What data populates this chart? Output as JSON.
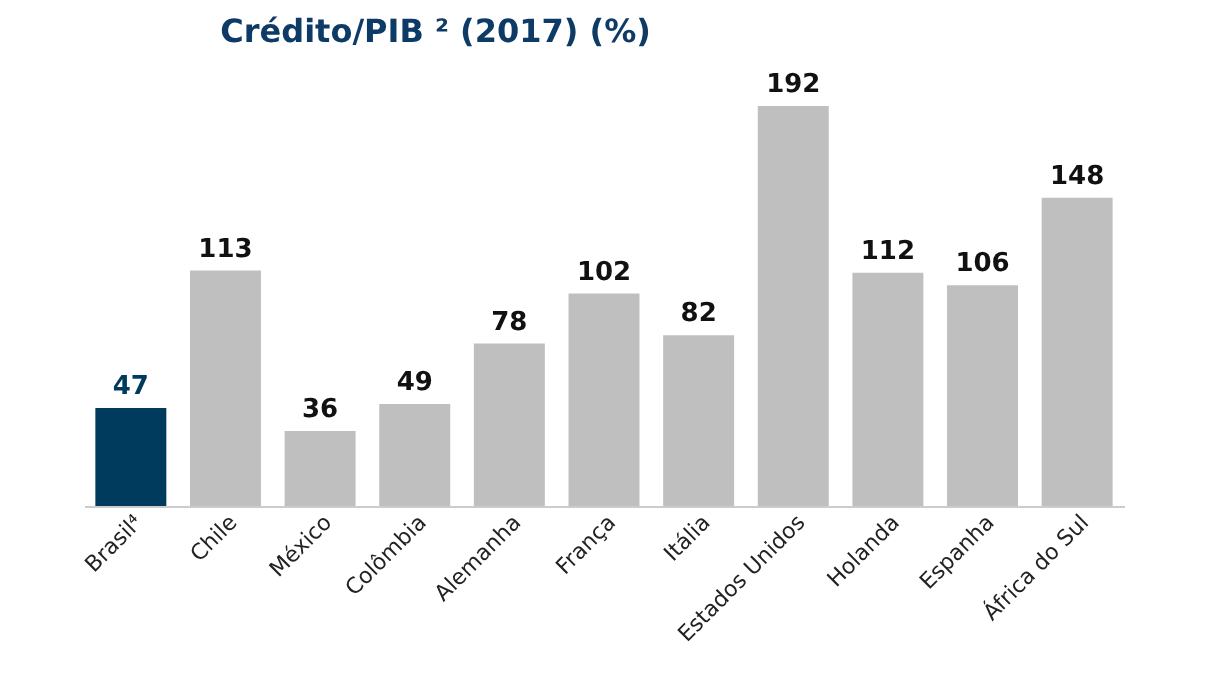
{
  "chart_data": {
    "type": "bar",
    "title": "Crédito/PIB ² (2017) (%)",
    "categories": [
      "Brasil⁴",
      "Chile",
      "México",
      "Colômbia",
      "Alemanha",
      "França",
      "Itália",
      "Estados Unidos",
      "Holanda",
      "Espanha",
      "África do Sul"
    ],
    "values": [
      47,
      113,
      36,
      49,
      78,
      102,
      82,
      192,
      112,
      106,
      148
    ],
    "colors": [
      "#003a5d",
      "#bfbfbf",
      "#bfbfbf",
      "#bfbfbf",
      "#bfbfbf",
      "#bfbfbf",
      "#bfbfbf",
      "#bfbfbf",
      "#bfbfbf",
      "#bfbfbf",
      "#bfbfbf"
    ],
    "data_labels": true,
    "grid": false
  }
}
